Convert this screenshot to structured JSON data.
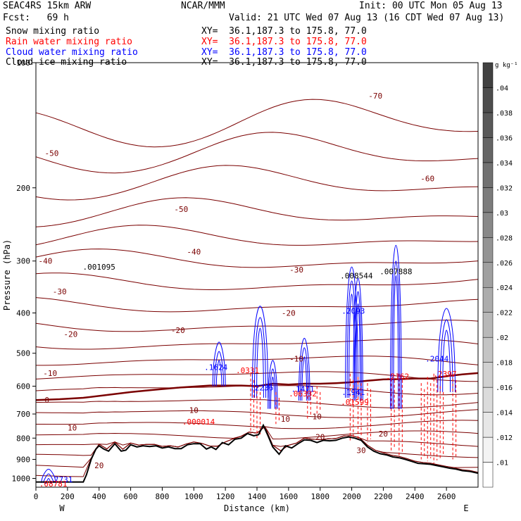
{
  "header": {
    "model": "SEAC4RS 15km ARW",
    "agency": "NCAR/MMM",
    "init": "Init: 00 UTC Mon 05 Aug 13",
    "fcst": "Fcst:   69 h",
    "valid": "Valid: 21 UTC Wed 07 Aug 13 (16 CDT Wed 07 Aug 13)",
    "fields": [
      {
        "name": "Snow mixing ratio",
        "xy": "XY=  36.1,187.3 to 175.8, 77.0",
        "color": "#000000"
      },
      {
        "name": "Rain water mixing ratio",
        "xy": "XY=  36.1,187.3 to 175.8, 77.0",
        "color": "#ff0000"
      },
      {
        "name": "Cloud water mixing ratio",
        "xy": "XY=  36.1,187.3 to 175.8, 77.0",
        "color": "#0000ff"
      },
      {
        "name": "Cloud ice mixing ratio",
        "xy": "XY=  36.1,187.3 to 175.8, 77.0",
        "color": "#000000"
      }
    ]
  },
  "colors": {
    "temperature": "#7a0000",
    "freezing": "#7a0000",
    "rain": "#ff0000",
    "cloud": "#0000ff",
    "terrain": "#000000"
  },
  "chart_data": {
    "type": "line",
    "xlabel": "Distance (km)",
    "ylabel": "Pressure (hPa)",
    "xlim": [
      0,
      2800
    ],
    "ylim": [
      100,
      1050
    ],
    "y_scale": "log",
    "xticks": [
      0,
      200,
      400,
      600,
      800,
      1000,
      1200,
      1400,
      1600,
      1800,
      2000,
      2200,
      2400,
      2600
    ],
    "yticks": [
      100,
      200,
      300,
      400,
      500,
      600,
      700,
      800,
      900,
      1000
    ],
    "end_labels": {
      "left": "W",
      "right": "E"
    },
    "colorbar": {
      "unit": "g kg⁻¹",
      "ticks": [
        ".01",
        ".012",
        ".014",
        ".016",
        ".018",
        ".02",
        ".022",
        ".024",
        ".026",
        ".028",
        ".03",
        ".032",
        ".034",
        ".036",
        ".038",
        ".04"
      ]
    },
    "temperature_labels": [
      {
        "text": "-70",
        "x": 2150,
        "p": 120
      },
      {
        "text": "-60",
        "x": 2480,
        "p": 190
      },
      {
        "text": "-50",
        "x": 100,
        "p": 165
      },
      {
        "text": "-50",
        "x": 920,
        "p": 225
      },
      {
        "text": "-40",
        "x": 60,
        "p": 300
      },
      {
        "text": "-40",
        "x": 1000,
        "p": 285
      },
      {
        "text": "-30",
        "x": 150,
        "p": 355
      },
      {
        "text": "-30",
        "x": 1650,
        "p": 315
      },
      {
        "text": "-20",
        "x": 220,
        "p": 450
      },
      {
        "text": "-20",
        "x": 900,
        "p": 440
      },
      {
        "text": "-20",
        "x": 1600,
        "p": 400
      },
      {
        "text": "-10",
        "x": 90,
        "p": 558
      },
      {
        "text": "-10",
        "x": 1650,
        "p": 515
      },
      {
        "text": "0",
        "x": 70,
        "p": 648
      },
      {
        "text": "10",
        "x": 1000,
        "p": 685
      },
      {
        "text": "10",
        "x": 1580,
        "p": 720
      },
      {
        "text": "10",
        "x": 1780,
        "p": 710
      },
      {
        "text": "10",
        "x": 230,
        "p": 755
      },
      {
        "text": "20",
        "x": 1800,
        "p": 795
      },
      {
        "text": "20",
        "x": 2200,
        "p": 780
      },
      {
        "text": "20",
        "x": 400,
        "p": 930
      },
      {
        "text": "30",
        "x": 2060,
        "p": 855
      }
    ],
    "max_labels": [
      {
        "text": ".001095",
        "x": 400,
        "p": 310,
        "color": "#000000"
      },
      {
        "text": ".008544",
        "x": 2030,
        "p": 325,
        "color": "#000000"
      },
      {
        "text": ".007888",
        "x": 2280,
        "p": 318,
        "color": "#000000"
      },
      {
        "text": ".2093",
        "x": 2010,
        "p": 395,
        "color": "#0000ff"
      },
      {
        "text": ".1624",
        "x": 1140,
        "p": 540,
        "color": "#0000ff"
      },
      {
        "text": ".2236",
        "x": 1430,
        "p": 605,
        "color": "#0000ff"
      },
      {
        "text": ".1471",
        "x": 1690,
        "p": 610,
        "color": "#0000ff"
      },
      {
        "text": ".1941",
        "x": 2010,
        "p": 620,
        "color": "#0000ff"
      },
      {
        "text": ".2044",
        "x": 2540,
        "p": 515,
        "color": "#0000ff"
      },
      {
        "text": ".0331",
        "x": 1340,
        "p": 550,
        "color": "#ff0000"
      },
      {
        "text": ".06332",
        "x": 1690,
        "p": 625,
        "color": "#ff0000"
      },
      {
        "text": ".2397",
        "x": 2590,
        "p": 560,
        "color": "#ff0000"
      },
      {
        "text": ".2162",
        "x": 2290,
        "p": 568,
        "color": "#ff0000"
      },
      {
        "text": ".01599",
        "x": 2020,
        "p": 655,
        "color": "#ff0000"
      },
      {
        "text": ".000014",
        "x": 1030,
        "p": 730,
        "color": "#ff0000"
      },
      {
        "text": ".7731",
        "x": 160,
        "p": 1005,
        "color": "#0000ff"
      },
      {
        "text": ".08781",
        "x": 110,
        "p": 1030,
        "color": "#ff0000"
      }
    ],
    "freezing_level": [
      [
        0,
        648
      ],
      [
        150,
        645
      ],
      [
        300,
        640
      ],
      [
        450,
        630
      ],
      [
        600,
        620
      ],
      [
        750,
        612
      ],
      [
        900,
        605
      ],
      [
        1100,
        598
      ],
      [
        1300,
        598
      ],
      [
        1400,
        600
      ],
      [
        1500,
        592
      ],
      [
        1600,
        595
      ],
      [
        1700,
        592
      ],
      [
        1800,
        592
      ],
      [
        1900,
        590
      ],
      [
        2000,
        587
      ],
      [
        2100,
        582
      ],
      [
        2200,
        578
      ],
      [
        2300,
        577
      ],
      [
        2400,
        575
      ],
      [
        2500,
        575
      ],
      [
        2600,
        568
      ],
      [
        2700,
        562
      ],
      [
        2800,
        558
      ]
    ],
    "terrain": [
      [
        0,
        1020
      ],
      [
        100,
        1020
      ],
      [
        200,
        1020
      ],
      [
        300,
        1020
      ],
      [
        320,
        980
      ],
      [
        350,
        900
      ],
      [
        380,
        850
      ],
      [
        400,
        835
      ],
      [
        430,
        850
      ],
      [
        460,
        860
      ],
      [
        500,
        825
      ],
      [
        540,
        860
      ],
      [
        570,
        855
      ],
      [
        600,
        830
      ],
      [
        640,
        840
      ],
      [
        680,
        835
      ],
      [
        720,
        838
      ],
      [
        760,
        835
      ],
      [
        800,
        845
      ],
      [
        840,
        840
      ],
      [
        880,
        848
      ],
      [
        920,
        848
      ],
      [
        960,
        830
      ],
      [
        1000,
        825
      ],
      [
        1040,
        825
      ],
      [
        1080,
        850
      ],
      [
        1110,
        840
      ],
      [
        1140,
        852
      ],
      [
        1180,
        820
      ],
      [
        1220,
        830
      ],
      [
        1260,
        805
      ],
      [
        1300,
        800
      ],
      [
        1340,
        780
      ],
      [
        1380,
        790
      ],
      [
        1410,
        785
      ],
      [
        1440,
        745
      ],
      [
        1470,
        790
      ],
      [
        1500,
        840
      ],
      [
        1540,
        875
      ],
      [
        1580,
        835
      ],
      [
        1620,
        845
      ],
      [
        1660,
        825
      ],
      [
        1700,
        808
      ],
      [
        1740,
        810
      ],
      [
        1780,
        820
      ],
      [
        1820,
        810
      ],
      [
        1860,
        812
      ],
      [
        1900,
        810
      ],
      [
        1940,
        800
      ],
      [
        1980,
        795
      ],
      [
        2020,
        800
      ],
      [
        2060,
        810
      ],
      [
        2100,
        840
      ],
      [
        2140,
        860
      ],
      [
        2180,
        872
      ],
      [
        2220,
        878
      ],
      [
        2260,
        888
      ],
      [
        2300,
        892
      ],
      [
        2340,
        900
      ],
      [
        2380,
        910
      ],
      [
        2420,
        920
      ],
      [
        2460,
        922
      ],
      [
        2500,
        925
      ],
      [
        2540,
        932
      ],
      [
        2580,
        938
      ],
      [
        2620,
        945
      ],
      [
        2660,
        950
      ],
      [
        2700,
        958
      ],
      [
        2750,
        962
      ],
      [
        2800,
        972
      ]
    ]
  }
}
